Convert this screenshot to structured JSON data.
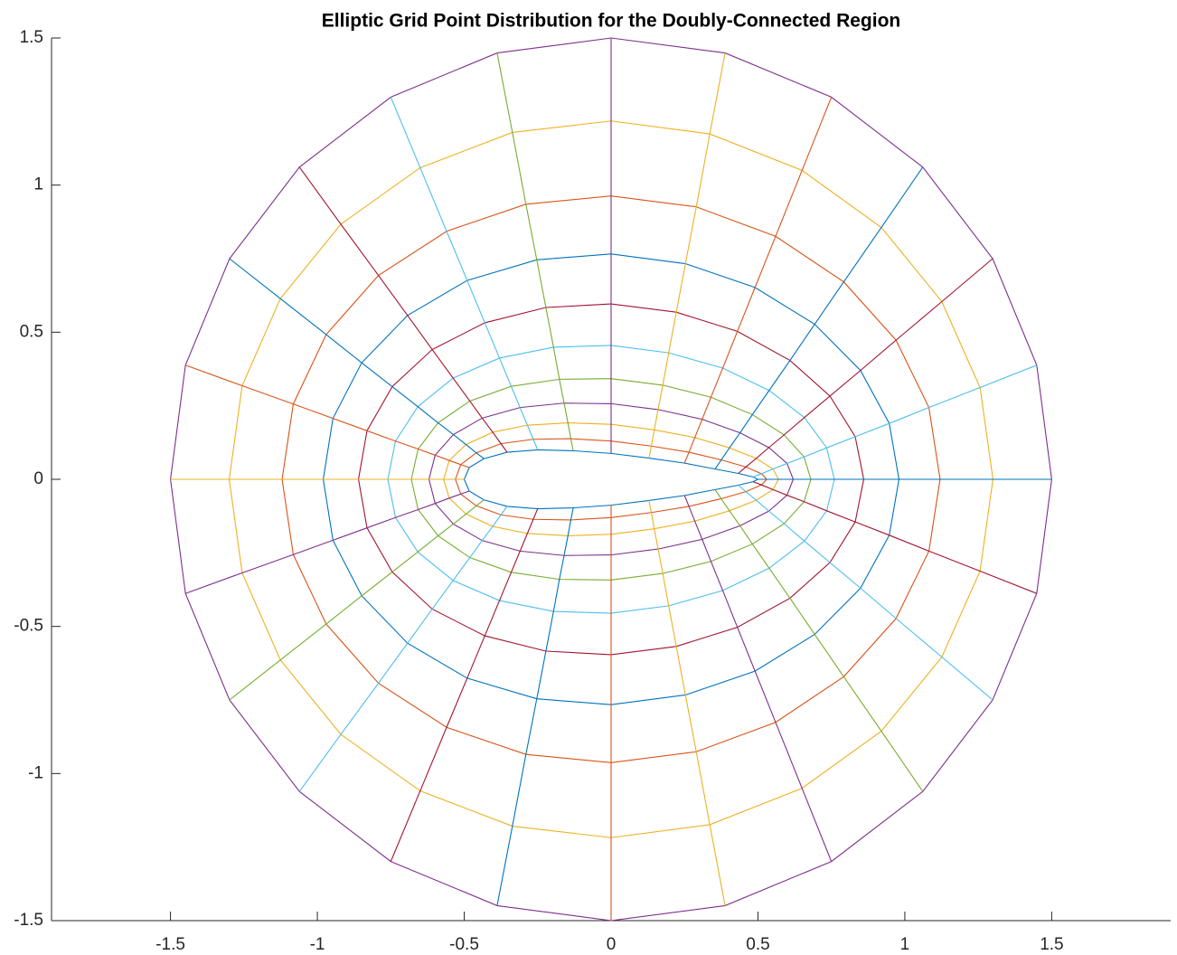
{
  "chart_data": {
    "type": "grid",
    "title": "Elliptic Grid Point Distribution for the Doubly-Connected Region",
    "colors": [
      "#0072BD",
      "#D95319",
      "#EDB120",
      "#7E2F8E",
      "#77AC30",
      "#4DBEEE",
      "#A2142F"
    ],
    "xlim": [
      -1.905,
      1.905
    ],
    "ylim": [
      -1.5,
      1.5
    ],
    "xticks": [
      -1.5,
      -1,
      -0.5,
      0,
      0.5,
      1,
      1.5
    ],
    "yticks": [
      -1.5,
      -1,
      -0.5,
      0,
      0.5,
      1,
      1.5
    ],
    "x": [
      [
        0.5,
        0.483,
        0.433,
        0.354,
        0.25,
        0.129,
        0,
        -0.129,
        -0.25,
        -0.354,
        -0.433,
        -0.483,
        -0.5,
        -0.483,
        -0.433,
        -0.354,
        -0.25,
        -0.129,
        0,
        0.129,
        0.25,
        0.354,
        0.433,
        0.483,
        0.5
      ],
      [
        0.53,
        0.512,
        0.459,
        0.375,
        0.265,
        0.137,
        0,
        -0.137,
        -0.265,
        -0.375,
        -0.459,
        -0.512,
        -0.53,
        -0.512,
        -0.459,
        -0.375,
        -0.265,
        -0.137,
        0,
        0.137,
        0.265,
        0.375,
        0.459,
        0.512,
        0.53
      ],
      [
        0.57,
        0.551,
        0.494,
        0.403,
        0.285,
        0.147,
        0,
        -0.147,
        -0.285,
        -0.403,
        -0.494,
        -0.551,
        -0.57,
        -0.551,
        -0.494,
        -0.403,
        -0.285,
        -0.147,
        0,
        0.147,
        0.285,
        0.403,
        0.494,
        0.551,
        0.57
      ],
      [
        0.62,
        0.599,
        0.537,
        0.439,
        0.31,
        0.16,
        0,
        -0.16,
        -0.31,
        -0.439,
        -0.537,
        -0.599,
        -0.62,
        -0.599,
        -0.537,
        -0.439,
        -0.31,
        -0.16,
        0,
        0.16,
        0.31,
        0.439,
        0.537,
        0.599,
        0.62
      ],
      [
        0.68,
        0.657,
        0.589,
        0.481,
        0.34,
        0.176,
        0,
        -0.176,
        -0.34,
        -0.481,
        -0.589,
        -0.657,
        -0.68,
        -0.657,
        -0.589,
        -0.481,
        -0.34,
        -0.176,
        0,
        0.176,
        0.34,
        0.481,
        0.589,
        0.657,
        0.68
      ],
      [
        0.76,
        0.734,
        0.658,
        0.538,
        0.38,
        0.196,
        0,
        -0.196,
        -0.38,
        -0.538,
        -0.658,
        -0.734,
        -0.76,
        -0.734,
        -0.658,
        -0.538,
        -0.38,
        -0.196,
        0,
        0.196,
        0.38,
        0.538,
        0.658,
        0.734,
        0.76
      ],
      [
        0.86,
        0.831,
        0.745,
        0.609,
        0.43,
        0.222,
        0,
        -0.222,
        -0.43,
        -0.609,
        -0.745,
        -0.831,
        -0.86,
        -0.831,
        -0.745,
        -0.609,
        -0.43,
        -0.222,
        0,
        0.222,
        0.43,
        0.609,
        0.745,
        0.831,
        0.86
      ],
      [
        0.98,
        0.947,
        0.849,
        0.693,
        0.49,
        0.253,
        0,
        -0.253,
        -0.49,
        -0.693,
        -0.849,
        -0.947,
        -0.98,
        -0.947,
        -0.849,
        -0.693,
        -0.49,
        -0.253,
        0,
        0.253,
        0.49,
        0.693,
        0.849,
        0.947,
        0.98
      ],
      [
        1.12,
        1.082,
        0.97,
        0.792,
        0.56,
        0.29,
        0,
        -0.29,
        -0.56,
        -0.792,
        -0.97,
        -1.082,
        -1.12,
        -1.082,
        -0.97,
        -0.792,
        -0.56,
        -0.29,
        0,
        0.29,
        0.56,
        0.792,
        0.97,
        1.082,
        1.12
      ],
      [
        1.3,
        1.256,
        1.126,
        0.92,
        0.65,
        0.336,
        0,
        -0.336,
        -0.65,
        -0.92,
        -1.126,
        -1.256,
        -1.3,
        -1.256,
        -1.126,
        -0.92,
        -0.65,
        -0.336,
        0,
        0.336,
        0.65,
        0.92,
        1.126,
        1.256,
        1.3
      ],
      [
        1.5,
        1.449,
        1.299,
        1.061,
        0.75,
        0.388,
        0,
        -0.388,
        -0.75,
        -1.061,
        -1.299,
        -1.449,
        -1.5,
        -1.449,
        -1.299,
        -1.061,
        -0.75,
        -0.388,
        0,
        0.388,
        0.75,
        1.061,
        1.299,
        1.449,
        1.5
      ]
    ],
    "y": [
      [
        0,
        0.008,
        0.02,
        0.035,
        0.055,
        0.072,
        0.088,
        0.097,
        0.1,
        0.092,
        0.07,
        0.04,
        0,
        -0.04,
        -0.07,
        -0.092,
        -0.1,
        -0.097,
        -0.088,
        -0.072,
        -0.055,
        -0.035,
        -0.02,
        -0.008,
        0
      ],
      [
        0,
        0.019,
        0.042,
        0.066,
        0.092,
        0.113,
        0.13,
        0.138,
        0.136,
        0.121,
        0.09,
        0.05,
        0,
        -0.05,
        -0.09,
        -0.121,
        -0.136,
        -0.138,
        -0.13,
        -0.113,
        -0.092,
        -0.066,
        -0.042,
        -0.019,
        0
      ],
      [
        0,
        0.035,
        0.071,
        0.107,
        0.142,
        0.168,
        0.187,
        0.192,
        0.184,
        0.16,
        0.118,
        0.064,
        0,
        -0.064,
        -0.118,
        -0.16,
        -0.184,
        -0.192,
        -0.187,
        -0.168,
        -0.142,
        -0.107,
        -0.071,
        -0.035,
        0
      ],
      [
        0,
        0.054,
        0.108,
        0.158,
        0.204,
        0.237,
        0.257,
        0.259,
        0.244,
        0.208,
        0.152,
        0.082,
        0,
        -0.082,
        -0.152,
        -0.208,
        -0.244,
        -0.259,
        -0.257,
        -0.237,
        -0.204,
        -0.158,
        -0.108,
        -0.054,
        0
      ],
      [
        0,
        0.076,
        0.151,
        0.22,
        0.279,
        0.32,
        0.342,
        0.34,
        0.316,
        0.266,
        0.192,
        0.103,
        0,
        -0.103,
        -0.192,
        -0.266,
        -0.316,
        -0.34,
        -0.342,
        -0.32,
        -0.279,
        -0.22,
        -0.151,
        -0.076,
        0
      ],
      [
        0,
        0.107,
        0.21,
        0.302,
        0.378,
        0.43,
        0.455,
        0.449,
        0.412,
        0.344,
        0.247,
        0.13,
        0,
        -0.13,
        -0.247,
        -0.344,
        -0.412,
        -0.449,
        -0.455,
        -0.43,
        -0.378,
        -0.302,
        -0.21,
        -0.107,
        0
      ],
      [
        0,
        0.145,
        0.283,
        0.404,
        0.503,
        0.568,
        0.596,
        0.584,
        0.532,
        0.441,
        0.315,
        0.165,
        0,
        -0.165,
        -0.315,
        -0.441,
        -0.532,
        -0.584,
        -0.596,
        -0.568,
        -0.503,
        -0.404,
        -0.283,
        -0.145,
        0
      ],
      [
        0,
        0.19,
        0.37,
        0.527,
        0.652,
        0.733,
        0.766,
        0.746,
        0.676,
        0.557,
        0.396,
        0.207,
        0,
        -0.207,
        -0.396,
        -0.557,
        -0.676,
        -0.746,
        -0.766,
        -0.733,
        -0.652,
        -0.527,
        -0.37,
        -0.19,
        0
      ],
      [
        0,
        0.244,
        0.473,
        0.671,
        0.826,
        0.926,
        0.963,
        0.935,
        0.843,
        0.693,
        0.492,
        0.256,
        0,
        -0.256,
        -0.492,
        -0.693,
        -0.843,
        -0.935,
        -0.963,
        -0.926,
        -0.826,
        -0.671,
        -0.473,
        -0.244,
        0
      ],
      [
        0,
        0.312,
        0.604,
        0.856,
        1.05,
        1.174,
        1.218,
        1.179,
        1.059,
        0.867,
        0.614,
        0.318,
        0,
        -0.318,
        -0.614,
        -0.867,
        -1.059,
        -1.179,
        -1.218,
        -1.174,
        -1.05,
        -0.856,
        -0.604,
        -0.312,
        0
      ],
      [
        0,
        0.388,
        0.75,
        1.061,
        1.299,
        1.449,
        1.5,
        1.449,
        1.299,
        1.061,
        0.75,
        0.388,
        0,
        -0.388,
        -0.75,
        -1.061,
        -1.299,
        -1.449,
        -1.5,
        -1.449,
        -1.299,
        -1.061,
        -0.75,
        -0.388,
        0
      ]
    ]
  }
}
